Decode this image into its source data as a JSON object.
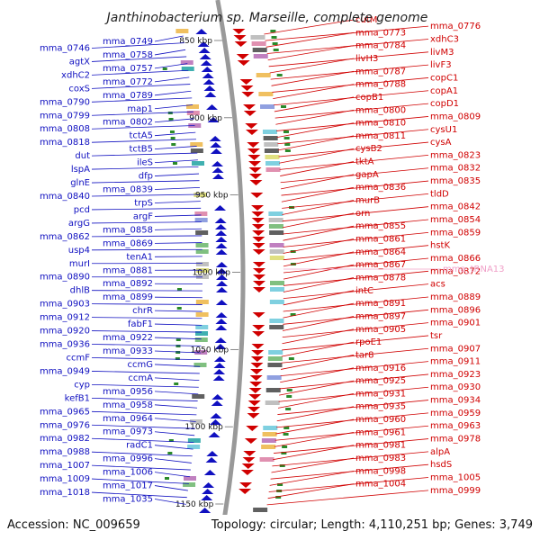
{
  "title": "Janthinobacterium sp. Marseille, complete genome",
  "footer": {
    "accession": "Accession: NC_009659",
    "summary": "Topology: circular; Length: 4,110,251 bp; Genes: 3,749"
  },
  "colors": {
    "left_strand": "#1010c0",
    "right_strand": "#d00000",
    "trna": "#f0a0c8",
    "backbone": "#999999",
    "tick": "#2a8a2a"
  },
  "scale_labels": [
    "850 kbp",
    "900 kbp",
    "950 kbp",
    "1000 kbp",
    "1050 kbp",
    "1100 kbp",
    "1150 kbp"
  ],
  "left_genes": [
    "mma_0749",
    "mma_0746",
    "mma_0758",
    "agtX",
    "mma_0757",
    "xdhC2",
    "mma_0772",
    "coxS",
    "mma_0789",
    "mma_0790",
    "map1",
    "mma_0799",
    "mma_0802",
    "mma_0808",
    "tctA5",
    "mma_0818",
    "tctB5",
    "dut",
    "ileS",
    "lspA",
    "dfp",
    "glnE",
    "mma_0839",
    "mma_0840",
    "trpS",
    "pcd",
    "argF",
    "argG",
    "mma_0858",
    "mma_0862",
    "mma_0869",
    "usp4",
    "tenA1",
    "murI",
    "mma_0881",
    "mma_0890",
    "mma_0892",
    "dhlB",
    "mma_0899",
    "mma_0903",
    "chrR",
    "mma_0912",
    "fabF1",
    "mma_0920",
    "mma_0922",
    "mma_0936",
    "mma_0933",
    "ccmF",
    "ccmG",
    "mma_0949",
    "ccmA",
    "cyp",
    "mma_0956",
    "kefB1",
    "mma_0958",
    "mma_0965",
    "mma_0964",
    "mma_0976",
    "mma_0973",
    "mma_0982",
    "radC1",
    "mma_0988",
    "mma_0996",
    "mma_1007",
    "mma_1006",
    "mma_1009",
    "mma_1017",
    "mma_1018",
    "mma_1035"
  ],
  "right_genes": [
    "cutM",
    "mma_0776",
    "mma_0773",
    "xdhC3",
    "mma_0784",
    "livM3",
    "livH3",
    "livF3",
    "mma_0787",
    "copC1",
    "mma_0788",
    "copA1",
    "copB1",
    "copD1",
    "mma_0800",
    "mma_0809",
    "mma_0810",
    "cysU1",
    "mma_0811",
    "cysA",
    "cysB2",
    "mma_0823",
    "tktA",
    "mma_0832",
    "gapA",
    "mma_0835",
    "mma_0836",
    "tldD",
    "murB",
    "mma_0842",
    "orn",
    "mma_0854",
    "mma_0855",
    "mma_0859",
    "mma_0861",
    "hstK",
    "mma_0864",
    "mma_0866",
    "mma_0867",
    "mma_0872",
    "mma_0878",
    "acs",
    "intC",
    "mma_0889",
    "mma_0891",
    "mma_0896",
    "mma_0897",
    "mma_0901",
    "mma_0905",
    "tsr",
    "rpoE1",
    "mma_0907",
    "tar8",
    "mma_0911",
    "mma_0916",
    "mma_0923",
    "mma_0925",
    "mma_0930",
    "mma_0931",
    "mma_0934",
    "mma_0935",
    "mma_0959",
    "mma_0960",
    "mma_0963",
    "mma_0961",
    "mma_0978",
    "mma_0981",
    "alpA",
    "mma_0983",
    "hsdS",
    "mma_0998",
    "mma_1005",
    "mma_1004",
    "mma_0999"
  ],
  "trna_genes": [
    "mma_tRNA13"
  ]
}
